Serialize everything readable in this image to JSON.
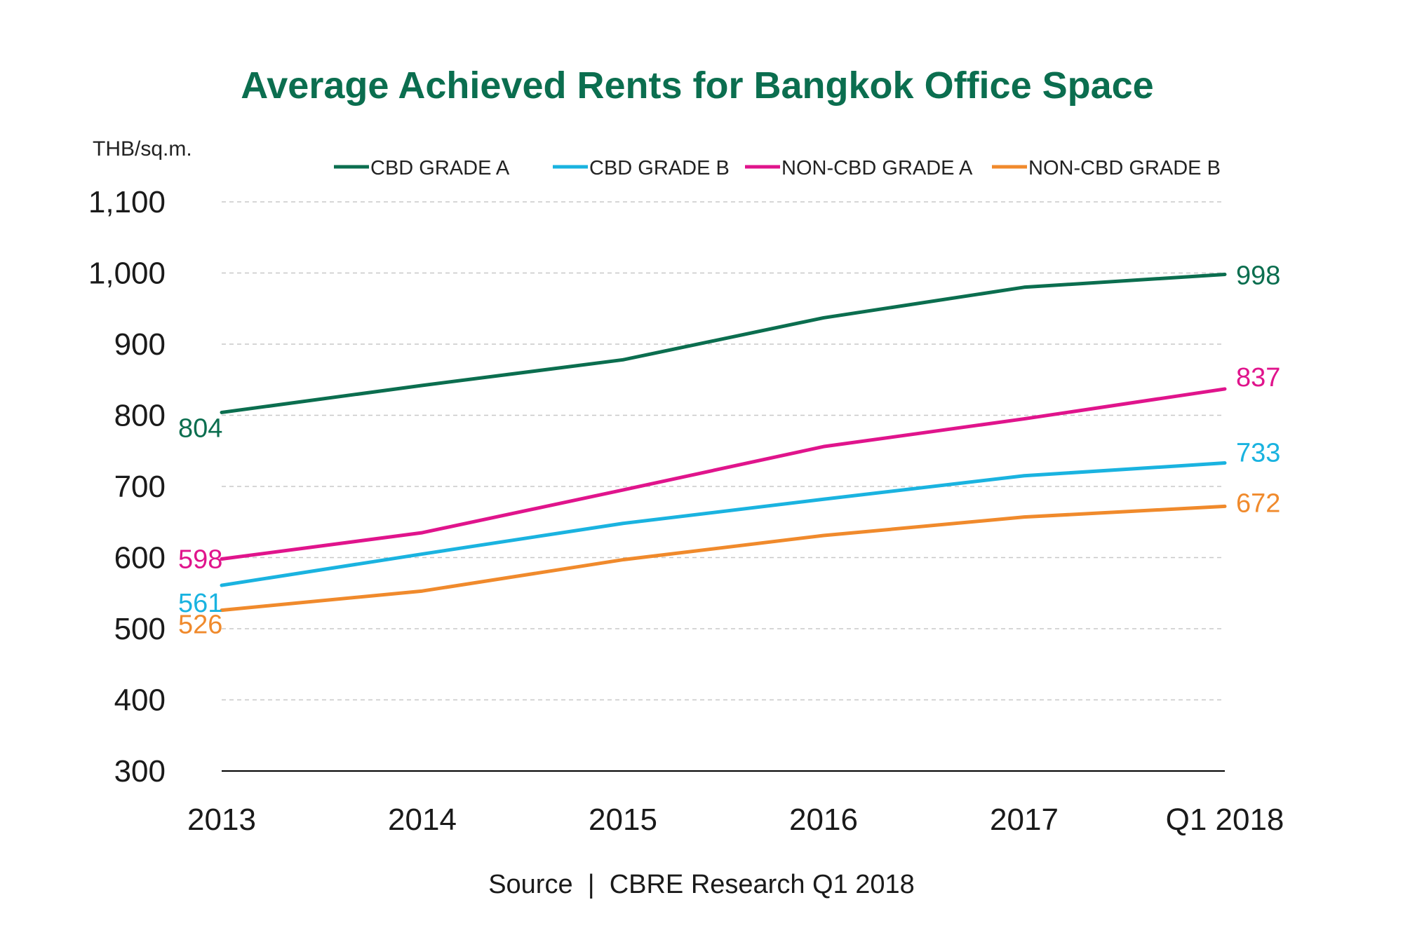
{
  "chart_data": {
    "type": "line",
    "title": "Average Achieved Rents for Bangkok Office Space",
    "ylabel": "THB/sq.m.",
    "xlabel": "",
    "categories": [
      "2013",
      "2014",
      "2015",
      "2016",
      "2017",
      "Q1 2018"
    ],
    "ylim": [
      300,
      1100
    ],
    "yticks": [
      300,
      400,
      500,
      600,
      700,
      800,
      900,
      1000,
      1100
    ],
    "ytick_labels": [
      "300",
      "400",
      "500",
      "600",
      "700",
      "800",
      "900",
      "1,000",
      "1,100"
    ],
    "grid": "horizontal dashed",
    "legend_position": "top",
    "series": [
      {
        "name": "CBD GRADE A",
        "color": "#0b6e4f",
        "values": [
          804,
          842,
          878,
          937,
          980,
          998
        ],
        "start_label": "804",
        "end_label": "998"
      },
      {
        "name": "CBD GRADE B",
        "color": "#1ab3e0",
        "values": [
          561,
          605,
          648,
          682,
          715,
          733
        ],
        "start_label": "561",
        "end_label": "733"
      },
      {
        "name": "NON-CBD GRADE A",
        "color": "#e0148c",
        "values": [
          598,
          635,
          695,
          756,
          795,
          837
        ],
        "start_label": "598",
        "end_label": "837"
      },
      {
        "name": "NON-CBD GRADE B",
        "color": "#f08a2c",
        "values": [
          526,
          553,
          597,
          631,
          657,
          672
        ],
        "start_label": "526",
        "end_label": "672"
      }
    ],
    "source": "Source  |  CBRE Research Q1 2018",
    "colors": {
      "title": "#0b6e4f",
      "grid": "#c8c8c8",
      "axis": "#000000"
    }
  }
}
